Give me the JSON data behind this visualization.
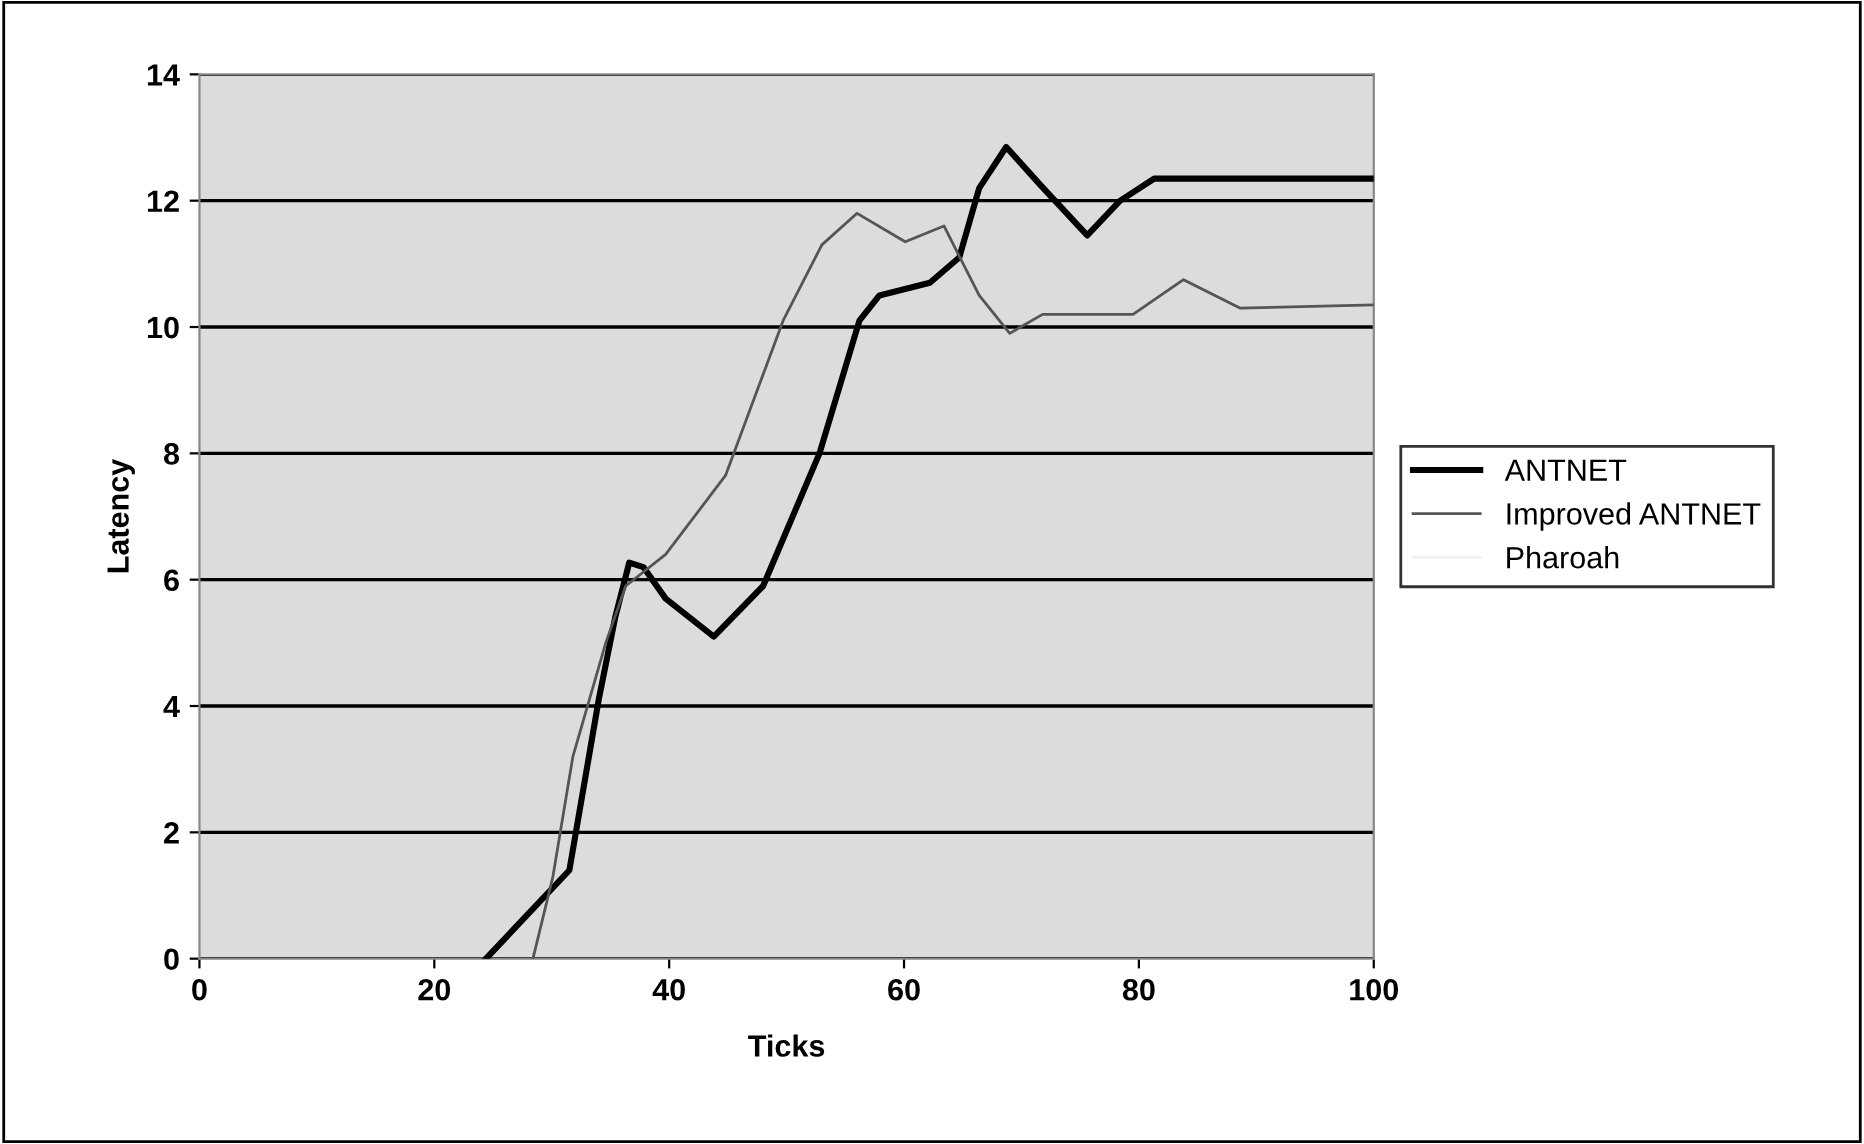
{
  "chart_data": {
    "type": "line",
    "xlabel": "Ticks",
    "ylabel": "Latency",
    "xlim": [
      0,
      100
    ],
    "xticks": [
      0,
      20,
      40,
      60,
      80,
      100
    ],
    "ylim": [
      0,
      14
    ],
    "yticks": [
      0,
      2,
      4,
      6,
      8,
      10,
      12,
      14
    ],
    "grid": "y",
    "legend": "right",
    "marker": "none",
    "line_style": "solid",
    "series": [
      {
        "name": "ANTNET",
        "color": "#000000",
        "x": [
          24.4,
          31.5,
          34,
          35.4,
          36.6,
          37.8,
          39.7,
          43.8,
          48,
          52.8,
          56.2,
          57.9,
          62.2,
          64.7,
          66.4,
          68.7,
          71.6,
          75.6,
          78.4,
          81.3,
          100
        ],
        "values": [
          0,
          1.4,
          4.1,
          5.4,
          6.27,
          6.2,
          5.7,
          5.1,
          5.9,
          8.0,
          10.1,
          10.5,
          10.7,
          11.1,
          12.2,
          12.85,
          12.25,
          11.45,
          12.0,
          12.35,
          12.35
        ]
      },
      {
        "name": "Improved ANTNET",
        "color": "#555555",
        "x": [
          28.4,
          30.1,
          31.8,
          34.6,
          36.3,
          39.7,
          44.8,
          49.7,
          53,
          56,
          60.1,
          63.4,
          66.4,
          69,
          71.8,
          79.5,
          83.8,
          88.6,
          100
        ],
        "values": [
          0,
          1.3,
          3.2,
          5.0,
          5.9,
          6.4,
          7.65,
          10.1,
          11.3,
          11.8,
          11.35,
          11.6,
          10.5,
          9.9,
          10.2,
          10.2,
          10.75,
          10.3,
          10.35
        ]
      },
      {
        "name": "Pharoah",
        "color": "#f0f0f0"
      }
    ]
  }
}
